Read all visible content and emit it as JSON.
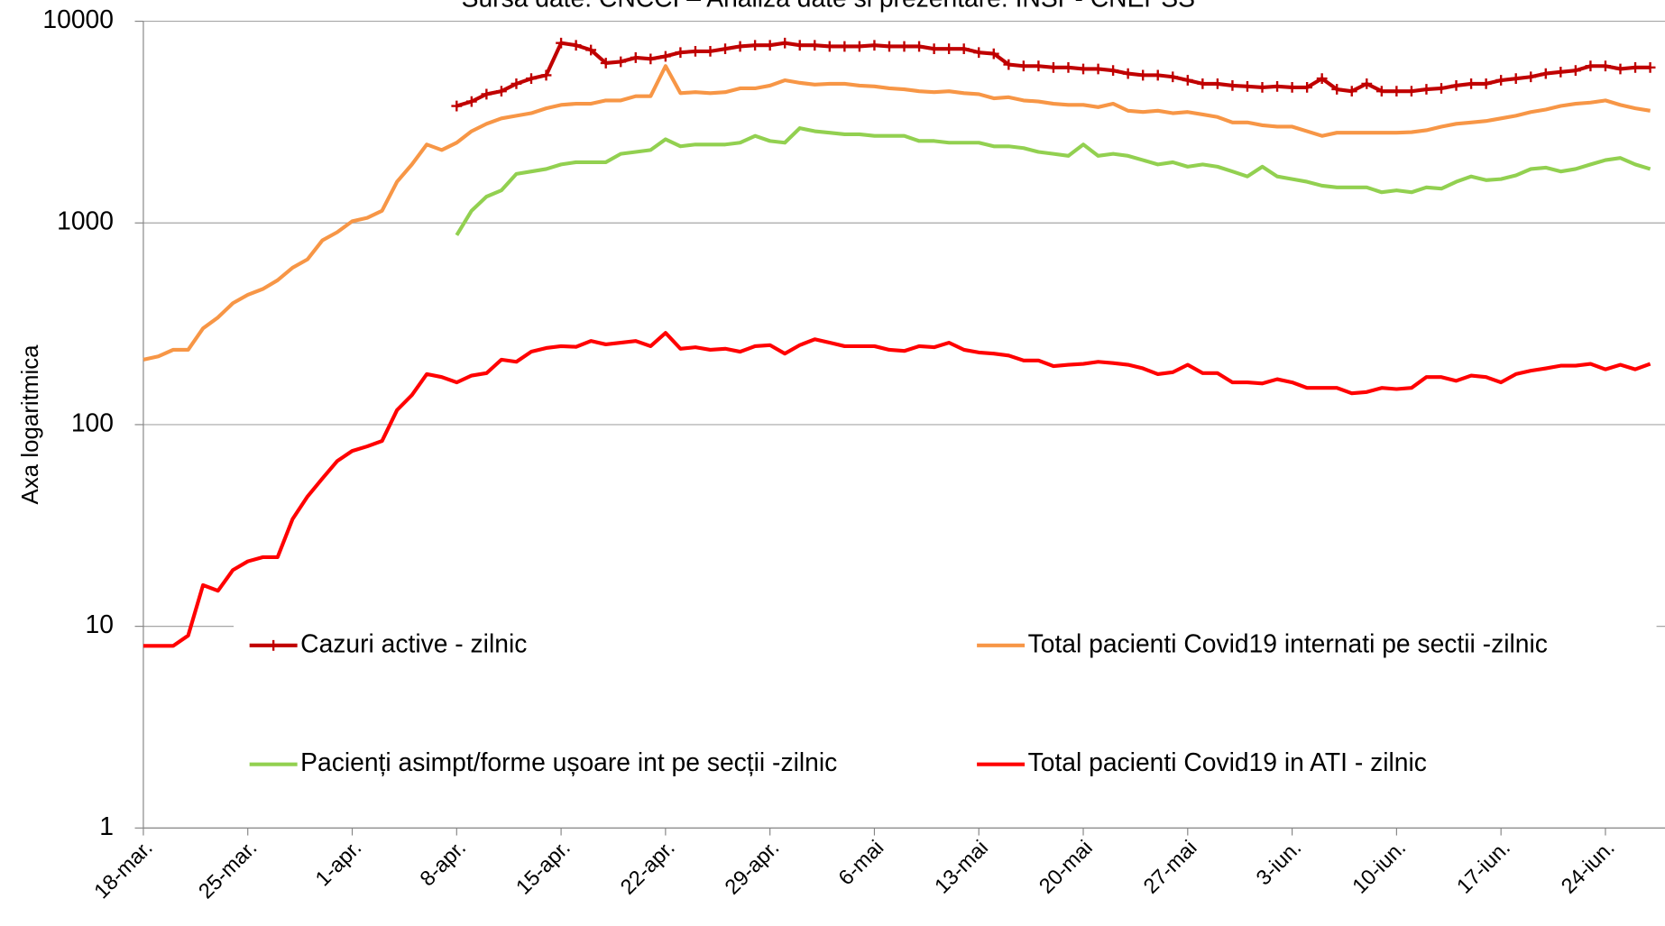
{
  "chart_data": {
    "type": "line",
    "title": "Sursa date: CNCCI – Analiza date si prezentare: INSP- CNEPSS",
    "y_label": "Axa  logaritmica",
    "log_y": true,
    "ylim": [
      1,
      10000
    ],
    "yticks": [
      1,
      10,
      100,
      1000,
      10000
    ],
    "grid": true,
    "categories": [
      "18-mar.",
      null,
      null,
      null,
      null,
      null,
      null,
      "25-mar.",
      null,
      null,
      null,
      null,
      null,
      null,
      "1-apr.",
      null,
      null,
      null,
      null,
      null,
      null,
      "8-apr.",
      null,
      null,
      null,
      null,
      null,
      null,
      "15-apr.",
      null,
      null,
      null,
      null,
      null,
      null,
      "22-apr.",
      null,
      null,
      null,
      null,
      null,
      null,
      "29-apr.",
      null,
      null,
      null,
      null,
      null,
      null,
      "6-mai",
      null,
      null,
      null,
      null,
      null,
      null,
      "13-mai",
      null,
      null,
      null,
      null,
      null,
      null,
      "20-mai",
      null,
      null,
      null,
      null,
      null,
      null,
      "27-mai",
      null,
      null,
      null,
      null,
      null,
      null,
      "3-iun.",
      null,
      null,
      null,
      null,
      null,
      null,
      "10-iun.",
      null,
      null,
      null,
      null,
      null,
      null,
      "17-iun.",
      null,
      null,
      null,
      null,
      null,
      null,
      "24-iun.",
      null,
      null,
      null
    ],
    "series": [
      {
        "name": "Cazuri active - zilnic",
        "color": "#c00000",
        "marker": "plus",
        "values": [
          null,
          null,
          null,
          null,
          null,
          null,
          null,
          null,
          null,
          null,
          null,
          null,
          null,
          null,
          null,
          null,
          null,
          null,
          null,
          null,
          null,
          3800,
          4000,
          4350,
          4500,
          4900,
          5200,
          5400,
          7800,
          7600,
          7200,
          6200,
          6300,
          6600,
          6500,
          6700,
          7000,
          7100,
          7100,
          7300,
          7500,
          7600,
          7600,
          7800,
          7600,
          7600,
          7500,
          7500,
          7500,
          7600,
          7500,
          7500,
          7500,
          7300,
          7300,
          7300,
          7000,
          6900,
          6100,
          6000,
          6000,
          5900,
          5900,
          5800,
          5800,
          5700,
          5500,
          5400,
          5400,
          5300,
          5100,
          4900,
          4900,
          4800,
          4750,
          4700,
          4750,
          4700,
          4700,
          5200,
          4600,
          4500,
          4900,
          4500,
          4500,
          4500,
          4600,
          4650,
          4800,
          4900,
          4900,
          5100,
          5200,
          5300,
          5500,
          5600,
          5700,
          6000,
          6000,
          5800,
          5900,
          5900
        ]
      },
      {
        "name": "Total pacienti Covid19 internati pe sectii -zilnic",
        "color": "#f79646",
        "values": [
          210,
          218,
          235,
          235,
          300,
          340,
          400,
          440,
          470,
          520,
          600,
          660,
          820,
          900,
          1020,
          1060,
          1150,
          1600,
          1950,
          2450,
          2300,
          2500,
          2850,
          3100,
          3300,
          3400,
          3500,
          3700,
          3850,
          3900,
          3900,
          4050,
          4050,
          4250,
          4250,
          6000,
          4400,
          4450,
          4400,
          4450,
          4650,
          4650,
          4800,
          5100,
          4950,
          4850,
          4900,
          4900,
          4800,
          4750,
          4650,
          4600,
          4500,
          4450,
          4500,
          4400,
          4350,
          4150,
          4200,
          4050,
          4000,
          3900,
          3850,
          3850,
          3750,
          3900,
          3600,
          3550,
          3600,
          3500,
          3550,
          3450,
          3350,
          3150,
          3150,
          3050,
          3000,
          3000,
          2850,
          2700,
          2800,
          2800,
          2800,
          2800,
          2800,
          2820,
          2880,
          3000,
          3100,
          3150,
          3200,
          3300,
          3400,
          3550,
          3650,
          3800,
          3900,
          3950,
          4050,
          3850,
          3700,
          3600
        ]
      },
      {
        "name": "Pacienți asimpt/forme ușoare int pe secții -zilnic",
        "color": "#92d050",
        "values": [
          null,
          null,
          null,
          null,
          null,
          null,
          null,
          null,
          null,
          null,
          null,
          null,
          null,
          null,
          null,
          null,
          null,
          null,
          null,
          null,
          null,
          870,
          1150,
          1350,
          1450,
          1750,
          1800,
          1850,
          1950,
          2000,
          2000,
          2000,
          2200,
          2250,
          2300,
          2600,
          2400,
          2450,
          2450,
          2450,
          2500,
          2700,
          2550,
          2500,
          2950,
          2850,
          2800,
          2750,
          2750,
          2700,
          2700,
          2700,
          2550,
          2550,
          2500,
          2500,
          2500,
          2400,
          2400,
          2350,
          2250,
          2200,
          2150,
          2450,
          2150,
          2200,
          2150,
          2050,
          1950,
          2000,
          1900,
          1950,
          1900,
          1800,
          1700,
          1900,
          1700,
          1650,
          1600,
          1530,
          1500,
          1500,
          1500,
          1420,
          1450,
          1420,
          1500,
          1480,
          1600,
          1700,
          1630,
          1650,
          1720,
          1850,
          1880,
          1800,
          1850,
          1950,
          2050,
          2100,
          1950,
          1850
        ]
      },
      {
        "name": "Total pacienti Covid19 in ATI - zilnic",
        "color": "#ff0000",
        "values": [
          8,
          8,
          8,
          9,
          16,
          15,
          19,
          21,
          22,
          22,
          34,
          44,
          54,
          66,
          74,
          78,
          83,
          118,
          140,
          178,
          172,
          162,
          175,
          180,
          210,
          205,
          230,
          240,
          245,
          243,
          260,
          250,
          255,
          260,
          245,
          285,
          238,
          242,
          235,
          238,
          230,
          245,
          248,
          225,
          248,
          265,
          255,
          245,
          245,
          245,
          235,
          232,
          245,
          242,
          255,
          235,
          228,
          225,
          220,
          208,
          208,
          195,
          198,
          200,
          205,
          202,
          198,
          190,
          178,
          182,
          198,
          180,
          180,
          162,
          162,
          160,
          168,
          162,
          152,
          152,
          152,
          143,
          145,
          152,
          150,
          152,
          172,
          172,
          165,
          175,
          172,
          162,
          178,
          185,
          190,
          196,
          196,
          200,
          188,
          198,
          188,
          200
        ]
      }
    ]
  }
}
